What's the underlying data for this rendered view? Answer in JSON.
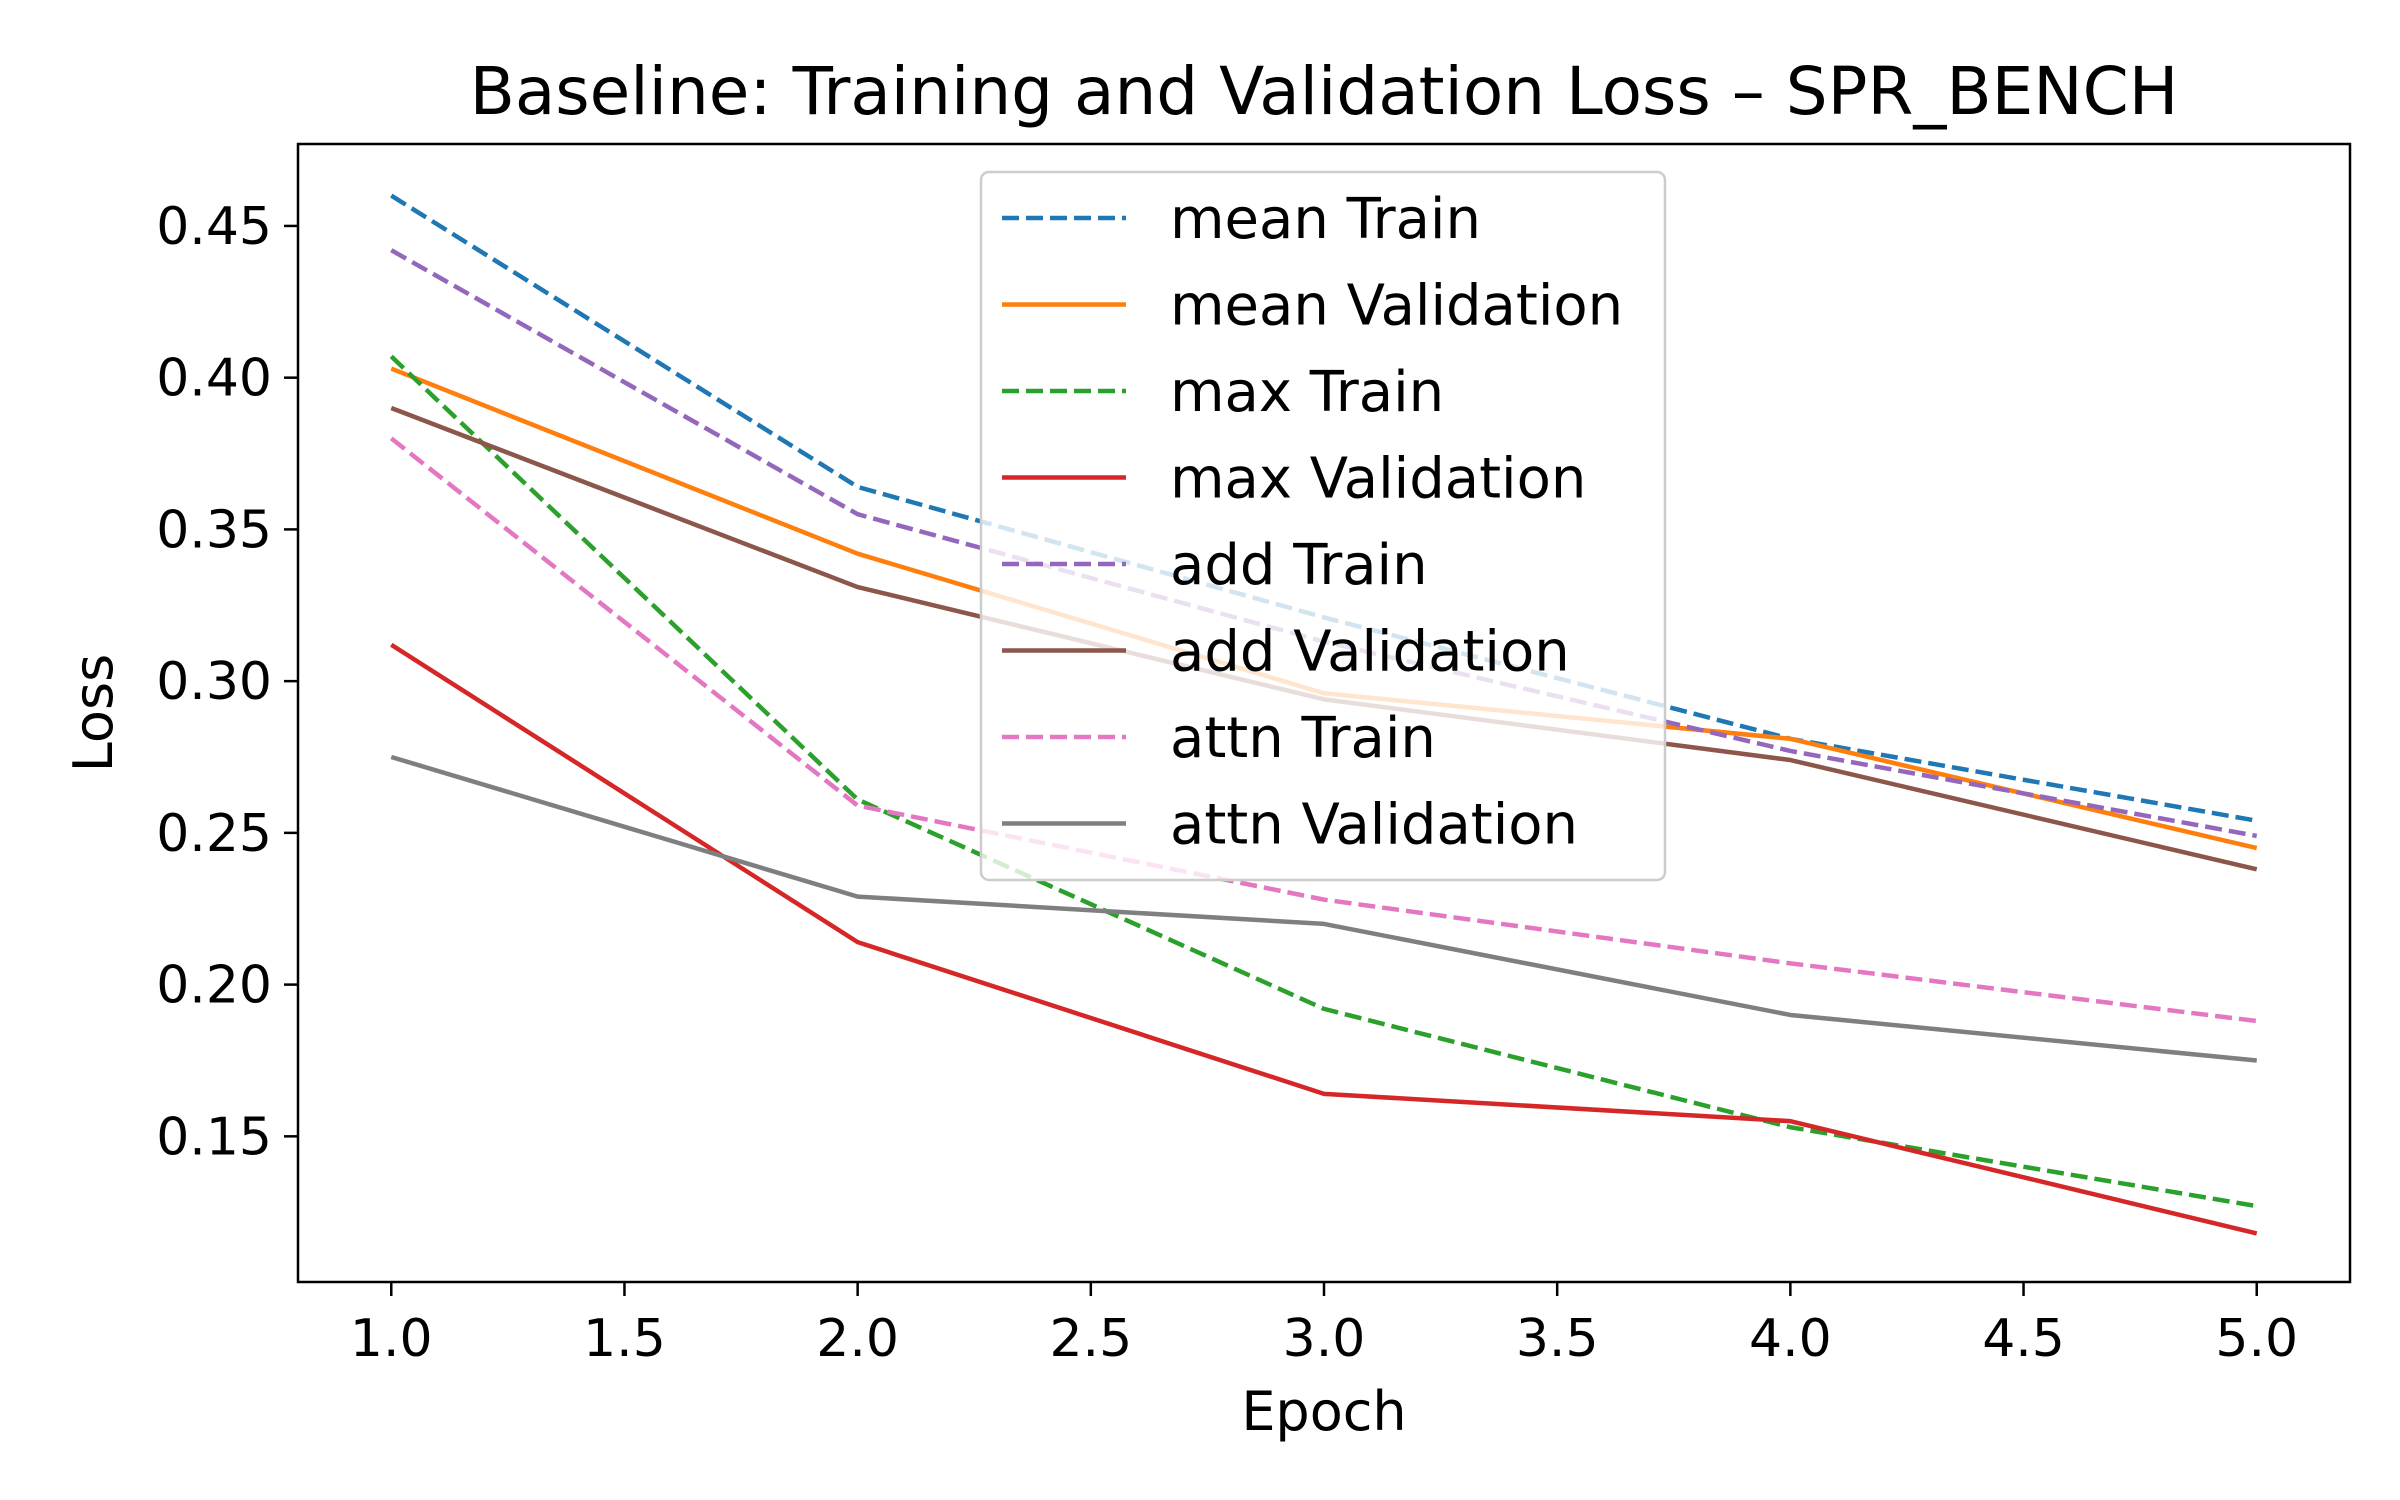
{
  "chart_data": {
    "type": "line",
    "title": "Baseline: Training and Validation Loss – SPR_BENCH",
    "xlabel": "Epoch",
    "ylabel": "Loss",
    "xlim": [
      0.8,
      5.2
    ],
    "ylim": [
      0.102,
      0.477
    ],
    "xticks": [
      1.0,
      1.5,
      2.0,
      2.5,
      3.0,
      3.5,
      4.0,
      4.5,
      5.0
    ],
    "xtick_labels": [
      "1.0",
      "1.5",
      "2.0",
      "2.5",
      "3.0",
      "3.5",
      "4.0",
      "4.5",
      "5.0"
    ],
    "yticks": [
      0.15,
      0.2,
      0.25,
      0.3,
      0.35,
      0.4,
      0.45
    ],
    "ytick_labels": [
      "0.15",
      "0.20",
      "0.25",
      "0.30",
      "0.35",
      "0.40",
      "0.45"
    ],
    "grid": false,
    "legend_position": "top-center",
    "x": [
      1,
      2,
      3,
      4,
      5
    ],
    "series": [
      {
        "name": "mean Train",
        "color": "#1f77b4",
        "dashed": true,
        "values": [
          0.46,
          0.364,
          0.321,
          0.281,
          0.254
        ]
      },
      {
        "name": "mean Validation",
        "color": "#ff7f0e",
        "dashed": false,
        "values": [
          0.403,
          0.342,
          0.296,
          0.281,
          0.245
        ]
      },
      {
        "name": "max Train",
        "color": "#2ca02c",
        "dashed": true,
        "values": [
          0.407,
          0.261,
          0.192,
          0.153,
          0.127
        ]
      },
      {
        "name": "max Validation",
        "color": "#d62728",
        "dashed": false,
        "values": [
          0.312,
          0.214,
          0.164,
          0.155,
          0.118
        ]
      },
      {
        "name": "add Train",
        "color": "#9467bd",
        "dashed": true,
        "values": [
          0.442,
          0.355,
          0.313,
          0.277,
          0.249
        ]
      },
      {
        "name": "add Validation",
        "color": "#8c564b",
        "dashed": false,
        "values": [
          0.39,
          0.331,
          0.294,
          0.274,
          0.238
        ]
      },
      {
        "name": "attn Train",
        "color": "#e377c2",
        "dashed": true,
        "values": [
          0.38,
          0.259,
          0.228,
          0.207,
          0.188
        ]
      },
      {
        "name": "attn Validation",
        "color": "#7f7f7f",
        "dashed": false,
        "values": [
          0.275,
          0.229,
          0.22,
          0.19,
          0.175
        ]
      }
    ]
  }
}
